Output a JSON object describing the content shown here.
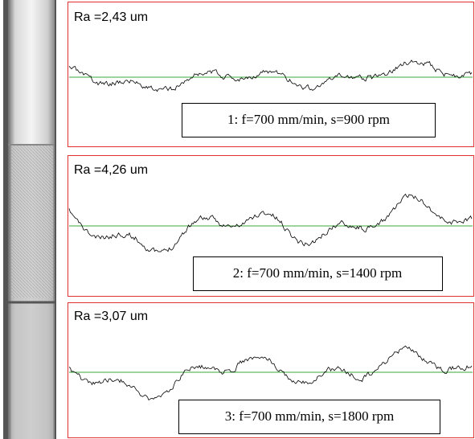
{
  "panels": [
    {
      "ra": "Ra =2,43  um",
      "caption": "1: f=700 mm/min, s=900 rpm"
    },
    {
      "ra": "Ra =4,26  um",
      "caption": "2: f=700 mm/min, s=1400 rpm"
    },
    {
      "ra": "Ra =3,07  um",
      "caption": "3: f=700 mm/min, s=1800 rpm"
    }
  ]
}
